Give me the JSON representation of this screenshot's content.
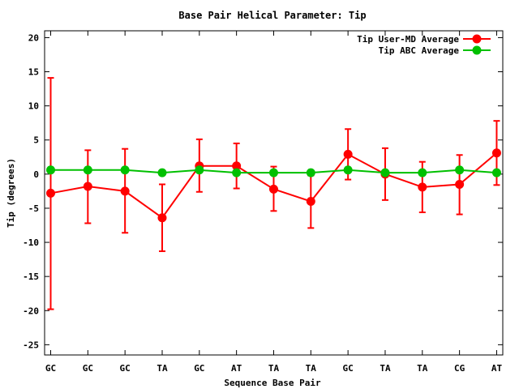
{
  "chart_data": {
    "type": "line",
    "title": "Base Pair Helical Parameter: Tip",
    "xlabel": "Sequence Base Pair",
    "ylabel": "Tip (degrees)",
    "ylim": [
      -26.5,
      21
    ],
    "yticks": [
      20,
      15,
      10,
      5,
      0,
      -5,
      -10,
      -15,
      -20,
      -25
    ],
    "categories": [
      "GC",
      "GC",
      "GC",
      "TA",
      "GC",
      "AT",
      "TA",
      "TA",
      "GC",
      "TA",
      "TA",
      "CG",
      "AT"
    ],
    "legend_position": "top-right",
    "grid": false,
    "series": [
      {
        "name": "Tip User-MD Average",
        "color": "#ff0000",
        "values": [
          -2.8,
          -1.8,
          -2.5,
          -6.4,
          1.2,
          1.2,
          -2.2,
          -4.0,
          2.9,
          0.0,
          -1.9,
          -1.5,
          3.1
        ],
        "err_low": [
          -19.8,
          -7.2,
          -8.6,
          -11.3,
          -2.6,
          -2.1,
          -5.4,
          -7.9,
          -0.8,
          -3.8,
          -5.6,
          -5.9,
          -1.6
        ],
        "err_high": [
          14.1,
          3.5,
          3.7,
          -1.5,
          5.1,
          4.5,
          1.1,
          -0.2,
          6.6,
          3.8,
          1.8,
          2.8,
          7.8
        ]
      },
      {
        "name": "Tip ABC Average",
        "color": "#00c000",
        "values": [
          0.6,
          0.6,
          0.6,
          0.2,
          0.6,
          0.2,
          0.2,
          0.2,
          0.6,
          0.2,
          0.2,
          0.6,
          0.2
        ]
      }
    ]
  }
}
